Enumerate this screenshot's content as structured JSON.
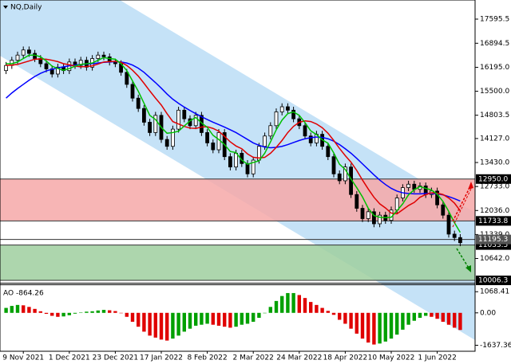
{
  "chart_data": [
    {
      "type": "candlestick",
      "title": "NQ,Daily",
      "categories": [
        null,
        null,
        null,
        "9 Nov 2021",
        null,
        null,
        null,
        null,
        null,
        null,
        null,
        "1 Dec 2021",
        null,
        null,
        null,
        null,
        null,
        null,
        null,
        "23 Dec 2021",
        null,
        null,
        null,
        null,
        null,
        null,
        null,
        "17 Jan 2022",
        null,
        null,
        null,
        null,
        null,
        null,
        null,
        "8 Feb 2022",
        null,
        null,
        null,
        null,
        null,
        null,
        null,
        "2 Mar 2022",
        null,
        null,
        null,
        null,
        null,
        null,
        null,
        "24 Mar 2022",
        null,
        null,
        null,
        null,
        null,
        null,
        null,
        "18 Apr 2022",
        null,
        null,
        null,
        null,
        null,
        null,
        null,
        "10 May 2022",
        null,
        null,
        null,
        null,
        null,
        null,
        null,
        "1 Jun 2022",
        null,
        null,
        null,
        null
      ],
      "open": [
        16100,
        16250,
        16400,
        16550,
        16700,
        16600,
        16450,
        16300,
        16150,
        16000,
        16200,
        16100,
        16350,
        16250,
        16400,
        16200,
        16450,
        16550,
        16500,
        16350,
        16300,
        16050,
        15700,
        15300,
        15000,
        14600,
        14300,
        14800,
        14100,
        13900,
        14400,
        14950,
        14700,
        14500,
        14800,
        14300,
        14000,
        13800,
        14300,
        13600,
        13300,
        13700,
        13400,
        13100,
        13500,
        13900,
        14200,
        14500,
        14900,
        15050,
        14950,
        14700,
        14500,
        14200,
        14000,
        14250,
        13900,
        13600,
        13100,
        12900,
        13300,
        12500,
        12100,
        11800,
        12000,
        11650,
        11900,
        11750,
        12050,
        12400,
        12700,
        12800,
        12650,
        12750,
        12500,
        12600,
        12200,
        11900,
        11350,
        11250
      ],
      "high": [
        16350,
        16500,
        16650,
        16800,
        16800,
        16700,
        16550,
        16400,
        16250,
        16300,
        16300,
        16450,
        16450,
        16500,
        16500,
        16550,
        16650,
        16650,
        16600,
        16450,
        16400,
        16150,
        15800,
        15400,
        15100,
        14700,
        14900,
        14900,
        14200,
        14500,
        15050,
        15050,
        14800,
        14900,
        14900,
        14400,
        14100,
        14400,
        14400,
        13700,
        13800,
        13800,
        13500,
        13600,
        14000,
        14300,
        14600,
        15000,
        15150,
        15150,
        15050,
        14800,
        14600,
        14300,
        14350,
        14350,
        14000,
        13700,
        13200,
        13400,
        13400,
        12600,
        12200,
        12100,
        12100,
        12000,
        12000,
        12150,
        12500,
        12800,
        12900,
        12900,
        12850,
        12850,
        12700,
        12700,
        12300,
        12000,
        11450,
        11350
      ],
      "low": [
        16000,
        16150,
        16300,
        16450,
        16500,
        16350,
        16200,
        16050,
        15900,
        15900,
        16000,
        16000,
        16150,
        16150,
        16100,
        16100,
        16350,
        16400,
        16250,
        16200,
        15950,
        15600,
        15200,
        14900,
        14500,
        14200,
        14200,
        14000,
        13800,
        13800,
        14300,
        14600,
        14400,
        14400,
        14200,
        13900,
        13700,
        13700,
        13500,
        13200,
        13200,
        13300,
        13000,
        13000,
        13400,
        13800,
        14100,
        14400,
        14800,
        14850,
        14600,
        14400,
        14100,
        13900,
        13900,
        13800,
        13500,
        13000,
        12800,
        12800,
        12400,
        12000,
        11700,
        11700,
        11550,
        11550,
        11650,
        11650,
        11950,
        12300,
        12600,
        12550,
        12550,
        12400,
        12400,
        12100,
        11800,
        11250,
        11150,
        11000
      ],
      "close": [
        16250,
        16400,
        16550,
        16700,
        16600,
        16450,
        16300,
        16150,
        16000,
        16200,
        16100,
        16350,
        16250,
        16400,
        16200,
        16450,
        16550,
        16500,
        16350,
        16300,
        16050,
        15700,
        15300,
        15000,
        14600,
        14300,
        14800,
        14100,
        13900,
        14400,
        14950,
        14700,
        14500,
        14800,
        14300,
        14000,
        13800,
        14300,
        13600,
        13300,
        13700,
        13400,
        13100,
        13500,
        13900,
        14200,
        14500,
        14900,
        15050,
        14950,
        14700,
        14500,
        14200,
        14000,
        14250,
        13900,
        13600,
        13100,
        12900,
        13300,
        12500,
        12100,
        11800,
        12000,
        11650,
        11900,
        11750,
        12050,
        12400,
        12700,
        12800,
        12650,
        12750,
        12500,
        12600,
        12200,
        11900,
        11350,
        11250,
        11100
      ],
      "candle_color": "#000000",
      "series": [
        {
          "color": "#0000ff",
          "values": [
            15300,
            15450,
            15580,
            15700,
            15820,
            15930,
            16020,
            16090,
            16140,
            16180,
            16210,
            16240,
            16260,
            16280,
            16290,
            16300,
            16320,
            16340,
            16350,
            16360,
            16350,
            16320,
            16260,
            16170,
            16050,
            15900,
            15750,
            15590,
            15420,
            15270,
            15150,
            15040,
            14940,
            14850,
            14760,
            14680,
            14600,
            14530,
            14460,
            14380,
            14300,
            14200,
            14100,
            14000,
            13930,
            13880,
            13860,
            13870,
            13900,
            13950,
            14010,
            14070,
            14120,
            14150,
            14170,
            14160,
            14120,
            14050,
            13950,
            13830,
            13700,
            13550,
            13390,
            13230,
            13070,
            12920,
            12790,
            12680,
            12600,
            12550,
            12530,
            12520,
            12520,
            12530,
            12530,
            12520,
            12490,
            12440,
            12380,
            12310
          ]
        },
        {
          "color": "#e00000",
          "values": [
            16250,
            16260,
            16280,
            16330,
            16380,
            16430,
            16440,
            16430,
            16400,
            16360,
            16300,
            16270,
            16230,
            16210,
            16220,
            16240,
            16290,
            16350,
            16360,
            16370,
            16340,
            16250,
            16110,
            15940,
            15730,
            15510,
            15300,
            15100,
            14850,
            14620,
            14550,
            14480,
            14430,
            14420,
            14460,
            14470,
            14420,
            14340,
            14190,
            14030,
            13910,
            13830,
            13680,
            13580,
            13560,
            13580,
            13700,
            13870,
            14070,
            14300,
            14480,
            14600,
            14640,
            14620,
            14550,
            14440,
            14280,
            14070,
            13840,
            13630,
            13440,
            13200,
            12920,
            12660,
            12420,
            12230,
            12110,
            11960,
            11940,
            12060,
            12180,
            12270,
            12420,
            12500,
            12550,
            12540,
            12500,
            12400,
            12250,
            12030
          ]
        },
        {
          "color": "#00c000",
          "values": [
            16300,
            16300,
            16350,
            16450,
            16550,
            16550,
            16500,
            16380,
            16230,
            16160,
            16110,
            16160,
            16230,
            16280,
            16300,
            16320,
            16400,
            16480,
            16450,
            16430,
            16300,
            16100,
            15800,
            15500,
            15150,
            14800,
            14680,
            14450,
            14280,
            14300,
            14340,
            14490,
            14640,
            14740,
            14580,
            14450,
            14220,
            14100,
            13950,
            13750,
            13720,
            13500,
            13380,
            13430,
            13480,
            13700,
            14030,
            14380,
            14660,
            14850,
            14900,
            14800,
            14590,
            14350,
            14240,
            14090,
            13990,
            13710,
            13380,
            13230,
            12950,
            12700,
            12430,
            12100,
            11890,
            11840,
            11830,
            11840,
            12030,
            12230,
            12490,
            12640,
            12730,
            12680,
            12630,
            12510,
            12300,
            12010,
            11680,
            11400
          ]
        }
      ],
      "ylim": [
        9937,
        18151
      ],
      "yticks": [
        {
          "value": 17595.5,
          "label": "17595.5"
        },
        {
          "value": 16894.5,
          "label": "16894.5"
        },
        {
          "value": 16195.0,
          "label": "16195.0"
        },
        {
          "value": 15500.0,
          "label": "15500.0"
        },
        {
          "value": 14803.5,
          "label": "14803.5"
        },
        {
          "value": 14127.0,
          "label": "14127.0"
        },
        {
          "value": 13430.0,
          "label": "13430.0"
        },
        {
          "value": 12733.0,
          "label": "12733.0"
        },
        {
          "value": 12036.0,
          "label": "12036.0"
        },
        {
          "value": 11339.0,
          "label": "11339.0"
        },
        {
          "value": 10642.0,
          "label": "10642.0"
        }
      ],
      "upper_zone": {
        "top": {
          "value": 12950.0,
          "label": "12950.0"
        },
        "bottom": {
          "value": 11733.8,
          "label": "11733.8"
        },
        "color": "#f6a8a8"
      },
      "level": {
        "value": 11195.3,
        "label": "11195.3"
      },
      "lower_zone": {
        "top": {
          "value": 11033.5,
          "label": "11033.5"
        },
        "bottom": {
          "value": 10006.3,
          "label": "10006.3"
        },
        "color": "#9fcf9f"
      }
    },
    {
      "type": "bar",
      "title": "AO",
      "values": [
        250,
        350,
        400,
        380,
        300,
        200,
        80,
        -50,
        -150,
        -200,
        -180,
        -120,
        -40,
        20,
        60,
        80,
        120,
        150,
        130,
        90,
        0,
        -200,
        -450,
        -700,
        -950,
        -1150,
        -1250,
        -1350,
        -1400,
        -1300,
        -1150,
        -950,
        -800,
        -650,
        -600,
        -550,
        -600,
        -650,
        -700,
        -750,
        -700,
        -600,
        -550,
        -450,
        -250,
        0,
        300,
        600,
        850,
        1000,
        1000,
        900,
        750,
        550,
        400,
        250,
        100,
        -100,
        -350,
        -550,
        -800,
        -1050,
        -1300,
        -1500,
        -1600,
        -1550,
        -1450,
        -1300,
        -1100,
        -850,
        -600,
        -400,
        -250,
        -150,
        -200,
        -300,
        -450,
        -600,
        -750,
        -864.26
      ],
      "up_color": "#00a000",
      "down_color": "#e00000",
      "ylim": [
        -1900,
        1400
      ],
      "yticks": [
        1068.41,
        {
          "value": 0,
          "label": "0.00"
        },
        -1637.36
      ]
    }
  ]
}
